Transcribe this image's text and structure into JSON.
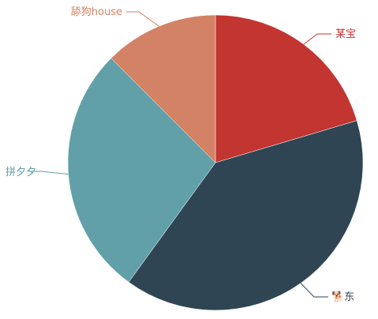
{
  "chart_data": {
    "type": "pie",
    "title": "",
    "slices": [
      {
        "label": "某宝",
        "value": 20.4,
        "color": "#c23531"
      },
      {
        "label": "🐕东",
        "value": 39.6,
        "color": "#2f4554"
      },
      {
        "label": "拼夕夕",
        "value": 27.5,
        "color": "#61a0a8"
      },
      {
        "label": "舔狗house",
        "value": 12.5,
        "color": "#d48265"
      }
    ],
    "legend": "none",
    "labels": "outside-with-leader-lines"
  }
}
